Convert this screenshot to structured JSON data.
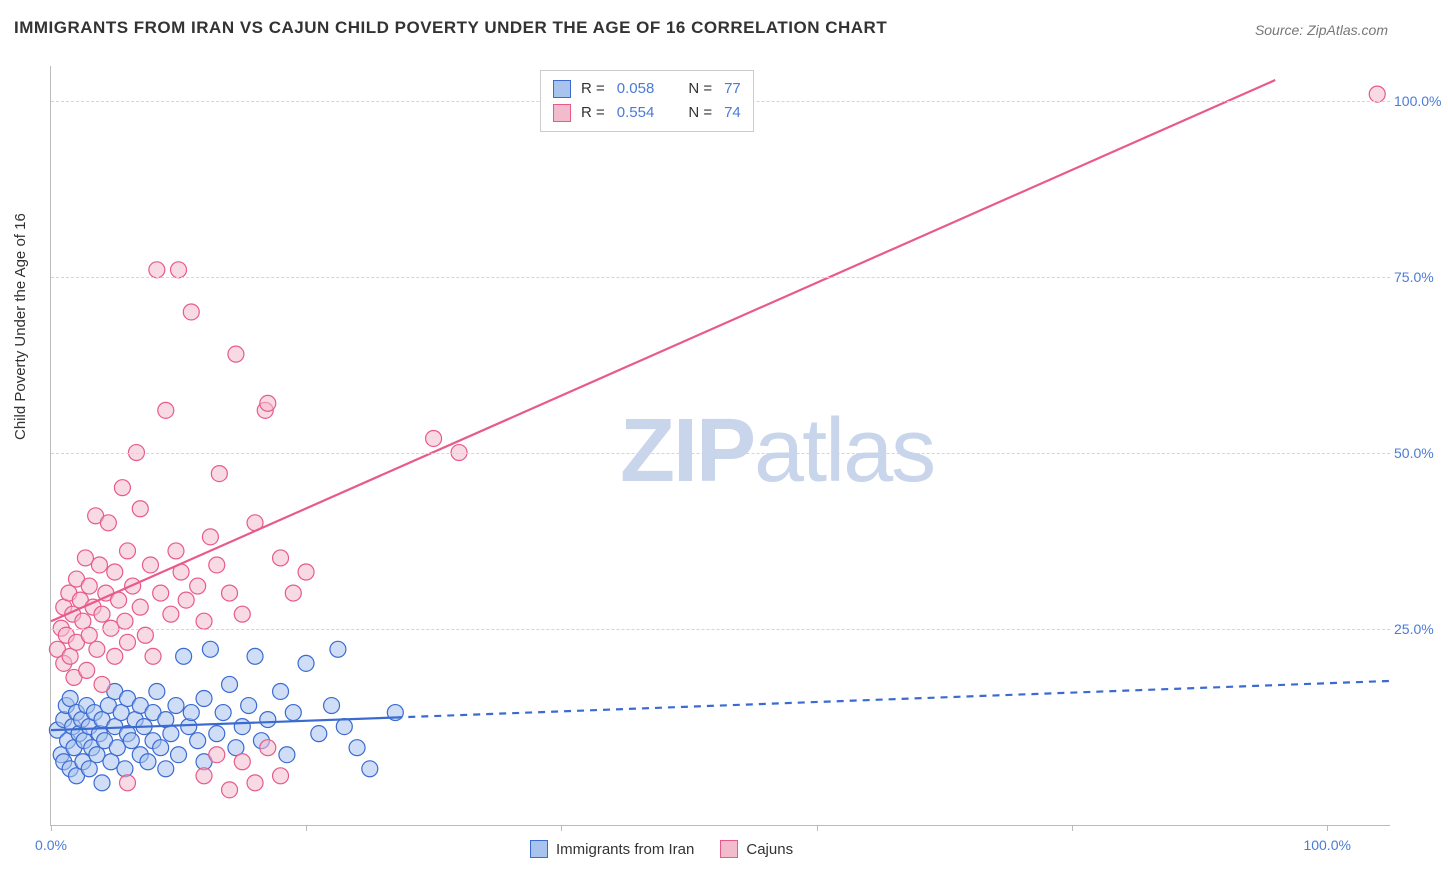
{
  "title": "IMMIGRANTS FROM IRAN VS CAJUN CHILD POVERTY UNDER THE AGE OF 16 CORRELATION CHART",
  "source": "Source: ZipAtlas.com",
  "ylabel": "Child Poverty Under the Age of 16",
  "watermark_bold": "ZIP",
  "watermark_light": "atlas",
  "chart": {
    "type": "scatter",
    "background_color": "#ffffff",
    "grid_color": "#d5d5d5",
    "axis_color": "#bbbbbb",
    "text_color": "#333333",
    "tick_color": "#4a7bd6",
    "xlim": [
      0,
      105
    ],
    "ylim": [
      -3,
      105
    ],
    "yticks": [
      {
        "v": 25,
        "label": "25.0%"
      },
      {
        "v": 50,
        "label": "50.0%"
      },
      {
        "v": 75,
        "label": "75.0%"
      },
      {
        "v": 100,
        "label": "100.0%"
      }
    ],
    "xtick_positions": [
      0,
      20,
      40,
      60,
      80,
      100
    ],
    "xtick_labels": {
      "0": "0.0%",
      "100": "100.0%"
    },
    "marker_radius": 8,
    "marker_opacity": 0.55,
    "marker_stroke_width": 1.2,
    "trend_line_width": 2.2
  },
  "series": [
    {
      "id": "iran",
      "label": "Immigrants from Iran",
      "color_fill": "#a7c3ee",
      "color_stroke": "#3b6bd1",
      "R": "0.058",
      "N": "77",
      "trend": {
        "x1": 0,
        "y1": 10.5,
        "x2": 105,
        "y2": 17.5,
        "solid_until_x": 27,
        "dashed": true
      },
      "points": [
        [
          0.5,
          10.5
        ],
        [
          0.8,
          7
        ],
        [
          1,
          12
        ],
        [
          1,
          6
        ],
        [
          1.2,
          14
        ],
        [
          1.3,
          9
        ],
        [
          1.5,
          15
        ],
        [
          1.5,
          5
        ],
        [
          1.7,
          11
        ],
        [
          1.8,
          8
        ],
        [
          2,
          13
        ],
        [
          2,
          4
        ],
        [
          2.2,
          10
        ],
        [
          2.4,
          12
        ],
        [
          2.5,
          6
        ],
        [
          2.6,
          9
        ],
        [
          2.8,
          14
        ],
        [
          3,
          11
        ],
        [
          3,
          5
        ],
        [
          3.2,
          8
        ],
        [
          3.4,
          13
        ],
        [
          3.6,
          7
        ],
        [
          3.8,
          10
        ],
        [
          4,
          12
        ],
        [
          4,
          3
        ],
        [
          4.2,
          9
        ],
        [
          4.5,
          14
        ],
        [
          4.7,
          6
        ],
        [
          5,
          11
        ],
        [
          5,
          16
        ],
        [
          5.2,
          8
        ],
        [
          5.5,
          13
        ],
        [
          5.8,
          5
        ],
        [
          6,
          10
        ],
        [
          6,
          15
        ],
        [
          6.3,
          9
        ],
        [
          6.6,
          12
        ],
        [
          7,
          7
        ],
        [
          7,
          14
        ],
        [
          7.3,
          11
        ],
        [
          7.6,
          6
        ],
        [
          8,
          13
        ],
        [
          8,
          9
        ],
        [
          8.3,
          16
        ],
        [
          8.6,
          8
        ],
        [
          9,
          12
        ],
        [
          9,
          5
        ],
        [
          9.4,
          10
        ],
        [
          9.8,
          14
        ],
        [
          10,
          7
        ],
        [
          10.4,
          21
        ],
        [
          10.8,
          11
        ],
        [
          11,
          13
        ],
        [
          11.5,
          9
        ],
        [
          12,
          15
        ],
        [
          12,
          6
        ],
        [
          12.5,
          22
        ],
        [
          13,
          10
        ],
        [
          13.5,
          13
        ],
        [
          14,
          17
        ],
        [
          14.5,
          8
        ],
        [
          15,
          11
        ],
        [
          15.5,
          14
        ],
        [
          16,
          21
        ],
        [
          16.5,
          9
        ],
        [
          17,
          12
        ],
        [
          18,
          16
        ],
        [
          18.5,
          7
        ],
        [
          19,
          13
        ],
        [
          20,
          20
        ],
        [
          21,
          10
        ],
        [
          22,
          14
        ],
        [
          22.5,
          22
        ],
        [
          23,
          11
        ],
        [
          24,
          8
        ],
        [
          25,
          5
        ],
        [
          27,
          13
        ]
      ]
    },
    {
      "id": "cajun",
      "label": "Cajuns",
      "color_fill": "#f3bccd",
      "color_stroke": "#e85a8a",
      "R": "0.554",
      "N": "74",
      "trend": {
        "x1": 0,
        "y1": 26,
        "x2": 96,
        "y2": 103,
        "dashed": false
      },
      "points": [
        [
          0.5,
          22
        ],
        [
          0.8,
          25
        ],
        [
          1,
          20
        ],
        [
          1,
          28
        ],
        [
          1.2,
          24
        ],
        [
          1.4,
          30
        ],
        [
          1.5,
          21
        ],
        [
          1.7,
          27
        ],
        [
          1.8,
          18
        ],
        [
          2,
          32
        ],
        [
          2,
          23
        ],
        [
          2.3,
          29
        ],
        [
          2.5,
          26
        ],
        [
          2.7,
          35
        ],
        [
          2.8,
          19
        ],
        [
          3,
          31
        ],
        [
          3,
          24
        ],
        [
          3.3,
          28
        ],
        [
          3.5,
          41
        ],
        [
          3.6,
          22
        ],
        [
          3.8,
          34
        ],
        [
          4,
          27
        ],
        [
          4,
          17
        ],
        [
          4.3,
          30
        ],
        [
          4.5,
          40
        ],
        [
          4.7,
          25
        ],
        [
          5,
          33
        ],
        [
          5,
          21
        ],
        [
          5.3,
          29
        ],
        [
          5.6,
          45
        ],
        [
          5.8,
          26
        ],
        [
          6,
          36
        ],
        [
          6,
          23
        ],
        [
          6.4,
          31
        ],
        [
          6.7,
          50
        ],
        [
          7,
          28
        ],
        [
          7,
          42
        ],
        [
          7.4,
          24
        ],
        [
          7.8,
          34
        ],
        [
          8,
          21
        ],
        [
          8.3,
          76
        ],
        [
          8.6,
          30
        ],
        [
          9,
          56
        ],
        [
          9.4,
          27
        ],
        [
          9.8,
          36
        ],
        [
          10,
          76
        ],
        [
          10.2,
          33
        ],
        [
          10.6,
          29
        ],
        [
          11,
          70
        ],
        [
          11.5,
          31
        ],
        [
          12,
          26
        ],
        [
          12.5,
          38
        ],
        [
          13,
          34
        ],
        [
          13.2,
          47
        ],
        [
          14,
          30
        ],
        [
          14.5,
          64
        ],
        [
          15,
          27
        ],
        [
          16,
          40
        ],
        [
          16.8,
          56
        ],
        [
          17,
          57
        ],
        [
          18,
          35
        ],
        [
          19,
          30
        ],
        [
          20,
          33
        ],
        [
          12,
          4
        ],
        [
          13,
          7
        ],
        [
          14,
          2
        ],
        [
          15,
          6
        ],
        [
          16,
          3
        ],
        [
          17,
          8
        ],
        [
          18,
          4
        ],
        [
          30,
          52
        ],
        [
          32,
          50
        ],
        [
          104,
          101
        ],
        [
          6,
          3
        ]
      ]
    }
  ],
  "legend_top": [
    {
      "swatch_fill": "#a7c3ee",
      "swatch_stroke": "#3b6bd1",
      "R_label": "R =",
      "R": "0.058",
      "N_label": "N =",
      "N": "77"
    },
    {
      "swatch_fill": "#f3bccd",
      "swatch_stroke": "#e85a8a",
      "R_label": "R =",
      "R": "0.554",
      "N_label": "N =",
      "N": "74"
    }
  ],
  "legend_bottom": [
    {
      "swatch_fill": "#a7c3ee",
      "swatch_stroke": "#3b6bd1",
      "label": "Immigrants from Iran"
    },
    {
      "swatch_fill": "#f3bccd",
      "swatch_stroke": "#e85a8a",
      "label": "Cajuns"
    }
  ]
}
